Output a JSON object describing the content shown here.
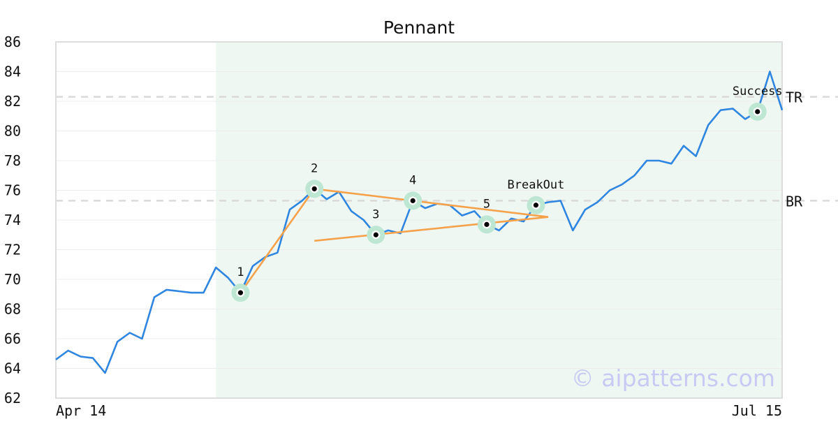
{
  "chart_data": {
    "type": "line",
    "title": "Pennant",
    "xlabel": "",
    "ylabel": "",
    "ylim": [
      62,
      86
    ],
    "yticks": [
      62,
      64,
      66,
      68,
      70,
      72,
      74,
      76,
      78,
      80,
      82,
      84,
      86
    ],
    "x_tick_labels": [
      "Apr 14",
      "Jul 15"
    ],
    "grid": true,
    "highlight_x_range": [
      13,
      59
    ],
    "series": [
      {
        "color": "#2f86e0",
        "values": [
          64.6,
          65.2,
          64.8,
          64.7,
          63.7,
          65.8,
          66.4,
          66.0,
          68.8,
          69.3,
          69.2,
          69.1,
          69.1,
          70.8,
          70.1,
          69.1,
          70.9,
          71.5,
          71.8,
          74.7,
          75.3,
          76.1,
          75.4,
          75.9,
          74.6,
          74.0,
          73.0,
          73.3,
          73.1,
          75.3,
          74.8,
          75.1,
          75.0,
          74.3,
          74.6,
          73.7,
          73.3,
          74.1,
          73.9,
          75.0,
          75.2,
          75.3,
          73.3,
          74.7,
          75.2,
          76.0,
          76.4,
          77.0,
          78.0,
          78.0,
          77.8,
          79.0,
          78.3,
          80.4,
          81.4,
          81.5,
          80.8,
          81.3,
          84.0,
          81.4
        ]
      }
    ],
    "pattern_lines": [
      {
        "color": "#f5a24b",
        "points": [
          [
            15,
            69.1
          ],
          [
            21,
            76.1
          ]
        ]
      },
      {
        "color": "#f5a24b",
        "points": [
          [
            21,
            76.1
          ],
          [
            40,
            74.2
          ]
        ]
      },
      {
        "color": "#f5a24b",
        "points": [
          [
            21,
            72.6
          ],
          [
            40,
            74.2
          ]
        ]
      }
    ],
    "reference_lines": [
      {
        "label": "TR",
        "y": 82.3
      },
      {
        "label": "BR",
        "y": 75.3
      }
    ],
    "annotations": [
      {
        "label": "1",
        "x": 15,
        "y": 69.1,
        "label_position": "above"
      },
      {
        "label": "2",
        "x": 21,
        "y": 76.1,
        "label_position": "above"
      },
      {
        "label": "3",
        "x": 26,
        "y": 73.0,
        "label_position": "above"
      },
      {
        "label": "4",
        "x": 29,
        "y": 75.3,
        "label_position": "above"
      },
      {
        "label": "5",
        "x": 35,
        "y": 73.7,
        "label_position": "above"
      },
      {
        "label": "BreakOut",
        "x": 39,
        "y": 75.0,
        "label_position": "above"
      },
      {
        "label": "Success",
        "x": 57,
        "y": 81.3,
        "label_position": "above"
      }
    ],
    "colors": {
      "line": "#2f86e0",
      "pattern": "#f5a24b",
      "highlight": "#eff7f3",
      "marker_halo": "#bde7d2",
      "reference": "#d9d9d9"
    }
  },
  "watermark": "© aipatterns.com"
}
